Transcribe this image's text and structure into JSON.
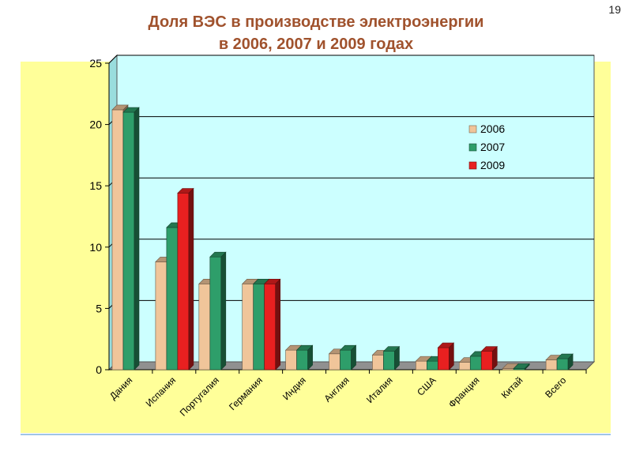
{
  "slide": {
    "page_number": "19",
    "title_line1": "Доля ВЭС в производстве электроэнергии",
    "title_line2": "в 2006, 2007 и 2009 годах"
  },
  "colors": {
    "panel_bg": "#ffff99",
    "plot_bg": "#ccffff",
    "floor": "#909090",
    "series_2006": "#f0c59a",
    "series_2007": "#2e9e6a",
    "series_2009": "#e82020",
    "title": "#a0522d"
  },
  "chart_data": {
    "type": "bar",
    "title": "",
    "xlabel": "",
    "ylabel": "",
    "ylim": [
      0,
      25
    ],
    "yticks": [
      0,
      5,
      10,
      15,
      20,
      25
    ],
    "grid": true,
    "legend_position": "right",
    "categories": [
      "Дания",
      "Испания",
      "Португалия",
      "Германия",
      "Индия",
      "Англия",
      "Италия",
      "США",
      "Франция",
      "Китай",
      "Всего"
    ],
    "series": [
      {
        "name": "2006",
        "values": [
          21.2,
          8.8,
          7.0,
          7.0,
          1.6,
          1.3,
          1.2,
          0.7,
          0.6,
          0.1,
          0.8
        ]
      },
      {
        "name": "2007",
        "values": [
          21.0,
          11.6,
          9.2,
          7.0,
          1.6,
          1.6,
          1.5,
          0.7,
          1.1,
          0.1,
          0.9
        ]
      },
      {
        "name": "2009",
        "values": [
          null,
          14.4,
          null,
          7.0,
          null,
          null,
          null,
          1.8,
          1.5,
          null,
          null
        ]
      }
    ]
  }
}
